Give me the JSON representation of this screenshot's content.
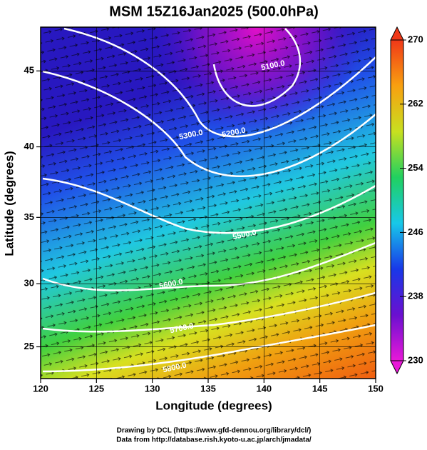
{
  "map": {
    "title": "MSM 15Z16Jan2025 (500.0hPa)",
    "x_label": "Longitude (degrees)",
    "y_label": "Latitude  (degrees)",
    "xlim": [
      120,
      150
    ],
    "xticks": [
      120,
      125,
      130,
      135,
      140,
      145,
      150
    ],
    "ylim": [
      22.4,
      47.7
    ],
    "yticks": [
      25,
      30,
      35,
      40,
      45
    ],
    "y_projection": "mercator",
    "contour_labels": [
      "5100.0",
      "5200.0",
      "5300.0",
      "5500.0",
      "5600.0",
      "5700.0",
      "5800.0"
    ],
    "colorbar": {
      "lim": [
        230,
        270
      ],
      "ticks": [
        230,
        238,
        246,
        254,
        262,
        270
      ],
      "colors": [
        "#e818d8",
        "#6a10d0",
        "#1838e8",
        "#18c8e8",
        "#20d060",
        "#c8e020",
        "#f8a010",
        "#f03818"
      ]
    },
    "credits": [
      "Drawing by DCL (https://www.gfd-dennou.org/library/dcl/)",
      "Data from http://database.rish.kyoto-u.ac.jp/arch/jmadata/"
    ]
  }
}
